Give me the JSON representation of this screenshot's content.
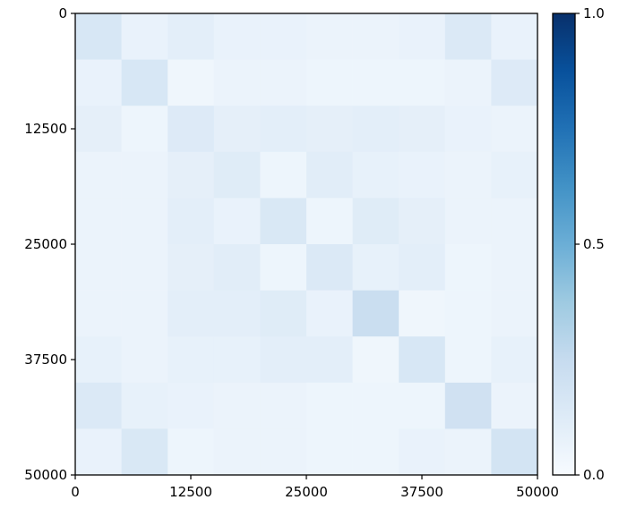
{
  "chart_data": {
    "type": "heatmap",
    "title": "",
    "xlabel": "",
    "ylabel": "",
    "x_ticks": [
      "0",
      "12500",
      "25000",
      "37500",
      "50000"
    ],
    "y_ticks": [
      "0",
      "12500",
      "25000",
      "37500",
      "50000"
    ],
    "xlim": [
      0,
      50000
    ],
    "ylim": [
      50000,
      0
    ],
    "grid": false,
    "block_edges": [
      0,
      5000,
      10000,
      15000,
      20000,
      25000,
      30000,
      35000,
      40000,
      45000,
      50000
    ],
    "values": [
      [
        0.16,
        0.07,
        0.1,
        0.07,
        0.07,
        0.06,
        0.06,
        0.07,
        0.14,
        0.07
      ],
      [
        0.07,
        0.16,
        0.04,
        0.06,
        0.06,
        0.05,
        0.05,
        0.05,
        0.06,
        0.13
      ],
      [
        0.09,
        0.05,
        0.13,
        0.09,
        0.1,
        0.09,
        0.1,
        0.09,
        0.07,
        0.06
      ],
      [
        0.06,
        0.06,
        0.09,
        0.12,
        0.05,
        0.11,
        0.08,
        0.07,
        0.06,
        0.08
      ],
      [
        0.06,
        0.06,
        0.1,
        0.07,
        0.15,
        0.05,
        0.12,
        0.09,
        0.06,
        0.06
      ],
      [
        0.06,
        0.06,
        0.09,
        0.11,
        0.05,
        0.14,
        0.08,
        0.1,
        0.05,
        0.06
      ],
      [
        0.06,
        0.06,
        0.1,
        0.1,
        0.12,
        0.07,
        0.23,
        0.04,
        0.05,
        0.06
      ],
      [
        0.08,
        0.06,
        0.08,
        0.08,
        0.1,
        0.1,
        0.04,
        0.16,
        0.05,
        0.08
      ],
      [
        0.14,
        0.08,
        0.07,
        0.06,
        0.06,
        0.05,
        0.05,
        0.05,
        0.2,
        0.06
      ],
      [
        0.07,
        0.15,
        0.05,
        0.06,
        0.06,
        0.05,
        0.05,
        0.07,
        0.06,
        0.18
      ]
    ],
    "colormap": "Blues",
    "colorbar": {
      "ticks": [
        "0.0",
        "0.5",
        "1.0"
      ],
      "range": [
        0.0,
        1.0
      ],
      "low_color": "#f7fbff",
      "high_color": "#08306b"
    }
  }
}
